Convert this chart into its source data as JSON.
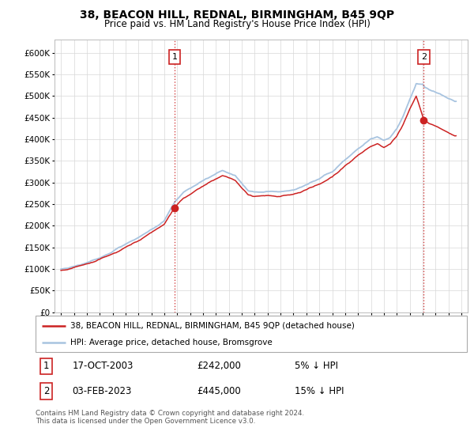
{
  "title": "38, BEACON HILL, REDNAL, BIRMINGHAM, B45 9QP",
  "subtitle": "Price paid vs. HM Land Registry's House Price Index (HPI)",
  "ytick_values": [
    0,
    50000,
    100000,
    150000,
    200000,
    250000,
    300000,
    350000,
    400000,
    450000,
    500000,
    550000,
    600000
  ],
  "ylim": [
    0,
    630000
  ],
  "xlim_start": 1994.5,
  "xlim_end": 2026.5,
  "xtick_years": [
    1995,
    1996,
    1997,
    1998,
    1999,
    2000,
    2001,
    2002,
    2003,
    2004,
    2005,
    2006,
    2007,
    2008,
    2009,
    2010,
    2011,
    2012,
    2013,
    2014,
    2015,
    2016,
    2017,
    2018,
    2019,
    2020,
    2021,
    2022,
    2023,
    2024,
    2025,
    2026
  ],
  "sale1_x": 2003.8,
  "sale1_y": 242000,
  "sale2_x": 2023.09,
  "sale2_y": 445000,
  "hpi_color": "#a8c4e0",
  "price_color": "#cc2222",
  "vline_color": "#cc2222",
  "legend_line1": "38, BEACON HILL, REDNAL, BIRMINGHAM, B45 9QP (detached house)",
  "legend_line2": "HPI: Average price, detached house, Bromsgrove",
  "table_entries": [
    {
      "num": "1",
      "date": "17-OCT-2003",
      "price": "£242,000",
      "note": "5% ↓ HPI"
    },
    {
      "num": "2",
      "date": "03-FEB-2023",
      "price": "£445,000",
      "note": "15% ↓ HPI"
    }
  ],
  "footnote": "Contains HM Land Registry data © Crown copyright and database right 2024.\nThis data is licensed under the Open Government Licence v3.0.",
  "grid_color": "#d8d8d8",
  "hpi_kx": [
    1995,
    1996,
    1997,
    1998,
    1999,
    2000,
    2001,
    2002,
    2003,
    2003.8,
    2004.5,
    2005.5,
    2006.5,
    2007.5,
    2008.5,
    2009,
    2009.5,
    2010,
    2011,
    2012,
    2013,
    2014,
    2015,
    2016,
    2017,
    2018,
    2019,
    2019.5,
    2020,
    2020.5,
    2021,
    2021.5,
    2022,
    2022.5,
    2023,
    2023.09,
    2023.5,
    2024,
    2024.5,
    2025,
    2025.5
  ],
  "hpi_ky": [
    100000,
    106000,
    115000,
    127000,
    141000,
    158000,
    172000,
    192000,
    212000,
    255000,
    278000,
    296000,
    313000,
    328000,
    316000,
    298000,
    282000,
    278000,
    280000,
    278000,
    282000,
    295000,
    308000,
    325000,
    352000,
    378000,
    400000,
    407000,
    398000,
    405000,
    425000,
    455000,
    492000,
    528000,
    528000,
    524000,
    515000,
    510000,
    503000,
    495000,
    488000
  ],
  "pp_kx": [
    1995,
    1996,
    1997,
    1998,
    1999,
    2000,
    2001,
    2002,
    2003,
    2003.8,
    2004.5,
    2005.5,
    2006.5,
    2007.5,
    2008.5,
    2009,
    2009.5,
    2010,
    2011,
    2012,
    2013,
    2014,
    2015,
    2016,
    2017,
    2018,
    2019,
    2019.5,
    2020,
    2020.5,
    2021,
    2021.5,
    2022,
    2022.5,
    2023,
    2023.09,
    2023.5,
    2024,
    2024.5,
    2025,
    2025.5
  ],
  "pp_ky": [
    97000,
    102000,
    111000,
    122000,
    135000,
    151000,
    165000,
    184000,
    203000,
    242000,
    263000,
    282000,
    300000,
    316000,
    304000,
    288000,
    272000,
    268000,
    270000,
    268000,
    272000,
    283000,
    296000,
    312000,
    338000,
    362000,
    383000,
    390000,
    381000,
    388000,
    407000,
    435000,
    470000,
    500000,
    452000,
    445000,
    437000,
    430000,
    423000,
    415000,
    408000
  ]
}
